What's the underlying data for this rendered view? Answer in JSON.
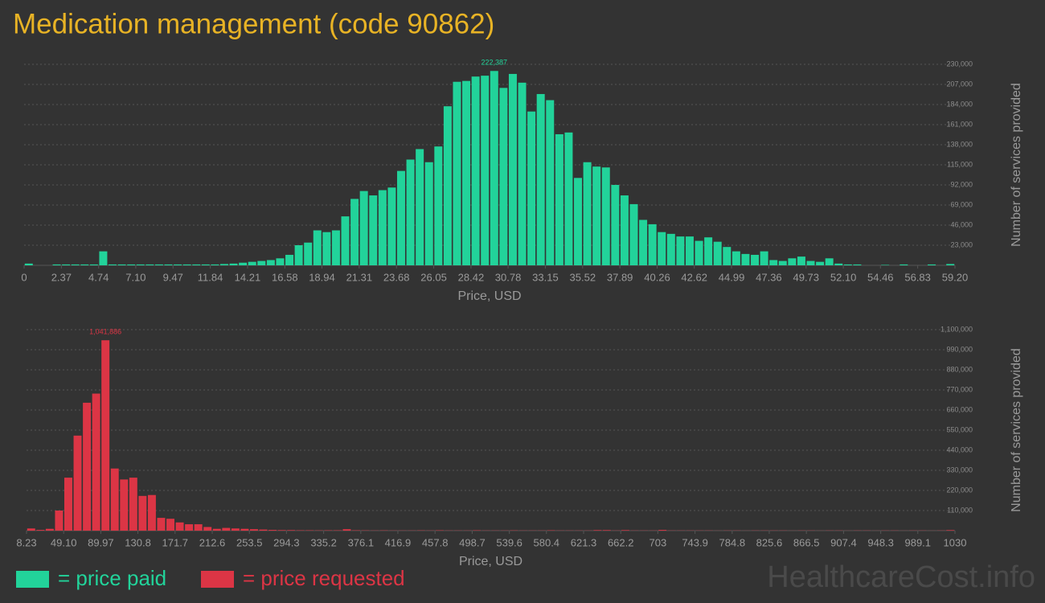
{
  "title": "Medication management (code 90862)",
  "watermark": "HealthcareCost.info",
  "chart_data": [
    {
      "type": "histogram",
      "x_label": "Price, USD",
      "y_label": "Number of services provided",
      "bins": [
        0,
        0.592,
        1.184,
        1.776,
        2.368,
        2.96,
        3.552,
        4.144,
        4.736,
        5.328,
        5.92,
        6.512,
        7.104,
        7.696,
        8.288,
        8.88,
        9.472,
        10.064,
        10.656,
        11.248,
        11.84,
        12.432,
        13.024,
        13.616,
        14.208,
        14.8,
        15.392,
        15.984,
        16.576,
        17.168,
        17.76,
        18.352,
        18.944,
        19.536,
        20.128,
        20.72,
        21.312,
        21.904,
        22.496,
        23.088,
        23.68,
        24.272,
        24.864,
        25.456,
        26.048,
        26.64,
        27.232,
        27.824,
        28.416,
        29.008,
        29.6,
        30.192,
        30.784,
        31.376,
        31.968,
        32.56,
        33.152,
        33.744,
        34.336,
        34.928,
        35.52,
        36.112,
        36.704,
        37.296,
        37.888,
        38.48,
        39.072,
        39.664,
        40.256,
        40.848,
        41.44,
        42.032,
        42.624,
        43.216,
        43.808,
        44.4,
        44.992,
        45.584,
        46.176,
        46.768,
        47.36,
        47.952,
        48.544,
        49.136,
        49.728,
        50.32,
        50.912,
        51.504,
        52.096,
        52.688,
        53.28,
        53.872,
        54.464,
        55.056,
        55.648,
        56.24,
        56.832,
        57.424,
        58.016,
        58.608,
        59.2
      ],
      "series": [
        {
          "name": "= price paid",
          "color": "#22d39a",
          "values": [
            2000,
            0,
            0,
            1000,
            1000,
            1000,
            1000,
            1000,
            16000,
            1000,
            1000,
            1000,
            1000,
            1000,
            1000,
            1000,
            1000,
            1000,
            1000,
            1000,
            1000,
            1500,
            2000,
            3000,
            4000,
            5000,
            6000,
            8000,
            12000,
            23000,
            26000,
            40000,
            38000,
            40000,
            56000,
            76000,
            85000,
            80000,
            86000,
            89000,
            108000,
            121000,
            133000,
            118000,
            136000,
            182000,
            210000,
            211000,
            216000,
            217000,
            222387,
            203000,
            219000,
            209000,
            176000,
            196000,
            189000,
            150000,
            152000,
            100000,
            118000,
            113000,
            112000,
            92000,
            80000,
            70000,
            52000,
            47000,
            38000,
            36000,
            33000,
            33000,
            28000,
            32000,
            27000,
            21000,
            16000,
            13000,
            12000,
            16000,
            6000,
            5000,
            8000,
            10000,
            5000,
            4000,
            8000,
            2000,
            1000,
            1000,
            0,
            0,
            500,
            0,
            1000,
            0,
            0,
            1000,
            0,
            1500
          ],
          "value_labels": [
            null,
            null,
            null,
            null,
            null,
            null,
            null,
            null,
            null,
            null,
            null,
            null,
            null,
            null,
            null,
            null,
            null,
            null,
            null,
            null,
            null,
            null,
            null,
            null,
            null,
            null,
            null,
            null,
            null,
            null,
            null,
            null,
            null,
            null,
            null,
            null,
            null,
            null,
            null,
            null,
            null,
            null,
            null,
            null,
            null,
            null,
            null,
            null,
            null,
            null,
            "222,387",
            null,
            null,
            null,
            null,
            null,
            null,
            null,
            null,
            null,
            null,
            null,
            null,
            null,
            null,
            null,
            null,
            null,
            null,
            null,
            null,
            null,
            null,
            null,
            null,
            null,
            null,
            null,
            null,
            null,
            null,
            null,
            null,
            null,
            null,
            null,
            null,
            null,
            null,
            null,
            null,
            null,
            null,
            null,
            null,
            null,
            null,
            null,
            null,
            null
          ]
        }
      ],
      "xlim": [
        0,
        59.2
      ],
      "xticks": [
        0,
        2.37,
        4.74,
        {
          "value": 7.1,
          "label": "7.10"
        },
        9.47,
        11.84,
        14.21,
        16.58,
        18.94,
        21.31,
        23.68,
        26.05,
        28.42,
        30.78,
        33.15,
        35.52,
        37.89,
        40.26,
        42.62,
        44.99,
        47.36,
        49.73,
        {
          "value": 52.1,
          "label": "52.10"
        },
        54.46,
        56.83,
        {
          "value": 59.2,
          "label": "59.20"
        }
      ],
      "ylim": [
        0,
        230000
      ],
      "yticks": [
        {
          "value": 23000,
          "label": "23,000"
        },
        {
          "value": 46000,
          "label": "46,000"
        },
        {
          "value": 69000,
          "label": "69,000"
        },
        {
          "value": 92000,
          "label": "92,000"
        },
        {
          "value": 115000,
          "label": "115,000"
        },
        {
          "value": 138000,
          "label": "138,000"
        },
        {
          "value": 161000,
          "label": "161,000"
        },
        {
          "value": 184000,
          "label": "184,000"
        },
        {
          "value": 207000,
          "label": "207,000"
        },
        {
          "value": 230000,
          "label": "230,000"
        }
      ],
      "grid": true
    },
    {
      "type": "histogram",
      "x_label": "Price, USD",
      "y_label": "Number of services provided",
      "bins": [
        8.23,
        18.45,
        28.67,
        38.88,
        49.1,
        59.32,
        69.54,
        79.75,
        89.97,
        100.19,
        110.41,
        120.62,
        130.84,
        141.06,
        151.28,
        161.5,
        171.71,
        181.93,
        192.15,
        202.37,
        212.58,
        222.8,
        233.02,
        243.24,
        253.45,
        263.67,
        273.89,
        284.11,
        294.33,
        304.54,
        314.76,
        324.98,
        335.2,
        345.41,
        355.63,
        365.85,
        376.07,
        386.28,
        396.5,
        406.72,
        416.94,
        427.16,
        437.37,
        447.59,
        457.81,
        468.03,
        478.24,
        488.46,
        498.68,
        508.9,
        519.12,
        529.33,
        539.55,
        549.77,
        559.99,
        570.2,
        580.42,
        590.64,
        600.86,
        611.07,
        621.29,
        631.51,
        641.73,
        651.95,
        662.16,
        672.38,
        682.6,
        692.82,
        703.03,
        713.25,
        723.47,
        733.69,
        743.9,
        754.12,
        764.34,
        774.56,
        784.78,
        794.99,
        805.21,
        815.43,
        825.65,
        835.86,
        846.08,
        856.3,
        866.52,
        876.73,
        886.95,
        897.17,
        907.39,
        917.61,
        927.82,
        938.04,
        948.26,
        958.48,
        968.69,
        978.91,
        989.13,
        999.35,
        1009.56,
        1019.78,
        1030
      ],
      "series": [
        {
          "name": "= price requested",
          "color": "#dc3545",
          "values": [
            12000,
            4000,
            10000,
            110000,
            290000,
            520000,
            700000,
            750000,
            1041886,
            340000,
            280000,
            290000,
            190000,
            195000,
            70000,
            65000,
            45000,
            35000,
            35000,
            20000,
            10000,
            15000,
            12000,
            10000,
            8000,
            6000,
            4000,
            3000,
            3000,
            2000,
            2000,
            1500,
            2000,
            2000,
            8000,
            2000,
            1500,
            1000,
            1500,
            1000,
            1000,
            1000,
            1500,
            1000,
            2000,
            1000,
            1000,
            1000,
            2000,
            1000,
            1000,
            1000,
            1500,
            1000,
            1000,
            1000,
            2000,
            1000,
            1000,
            1000,
            1000,
            3000,
            3000,
            1000,
            3000,
            1000,
            1000,
            1000,
            4000,
            1000,
            1000,
            1000,
            1000,
            1000,
            500,
            1000,
            1000,
            500,
            1000,
            1000,
            1000,
            1000,
            500,
            1000,
            1000,
            500,
            1000,
            1000,
            500,
            1000,
            1000,
            500,
            1000,
            1000,
            500,
            1000,
            1000,
            500,
            1000,
            3000
          ],
          "value_labels": [
            null,
            null,
            null,
            null,
            null,
            null,
            null,
            null,
            "1,041,886",
            null,
            null,
            null,
            null,
            null,
            null,
            null,
            null,
            null,
            null,
            null,
            null,
            null,
            null,
            null,
            null,
            null,
            null,
            null,
            null,
            null,
            null,
            null,
            null,
            null,
            null,
            null,
            null,
            null,
            null,
            null,
            null,
            null,
            null,
            null,
            null,
            null,
            null,
            null,
            null,
            null,
            null,
            null,
            null,
            null,
            null,
            null,
            null,
            null,
            null,
            null,
            null,
            null,
            null,
            null,
            null,
            null,
            null,
            null,
            null,
            null,
            null,
            null,
            null,
            null,
            null,
            null,
            null,
            null,
            null,
            null,
            null,
            null,
            null,
            null,
            null,
            null,
            null,
            null,
            null,
            null,
            null,
            null,
            null,
            null,
            null,
            null,
            null,
            null,
            null,
            null
          ]
        }
      ],
      "xlim": [
        8.23,
        1030
      ],
      "xticks": [
        8.23,
        {
          "value": 49.1,
          "label": "49.10"
        },
        89.97,
        130.8,
        171.7,
        212.6,
        253.5,
        294.3,
        335.2,
        376.1,
        416.9,
        457.8,
        498.7,
        539.6,
        580.4,
        621.3,
        662.2,
        703,
        743.9,
        784.8,
        825.6,
        866.5,
        907.4,
        948.3,
        989.1,
        1030
      ],
      "ylim": [
        0,
        1100000
      ],
      "yticks": [
        {
          "value": 110000,
          "label": "110,000"
        },
        {
          "value": 220000,
          "label": "220,000"
        },
        {
          "value": 330000,
          "label": "330,000"
        },
        {
          "value": 440000,
          "label": "440,000"
        },
        {
          "value": 550000,
          "label": "550,000"
        },
        {
          "value": 660000,
          "label": "660,000"
        },
        {
          "value": 770000,
          "label": "770,000"
        },
        {
          "value": 880000,
          "label": "880,000"
        },
        {
          "value": 990000,
          "label": "990,000"
        },
        {
          "value": 1100000,
          "label": "1,100,000"
        }
      ],
      "grid": true
    }
  ]
}
